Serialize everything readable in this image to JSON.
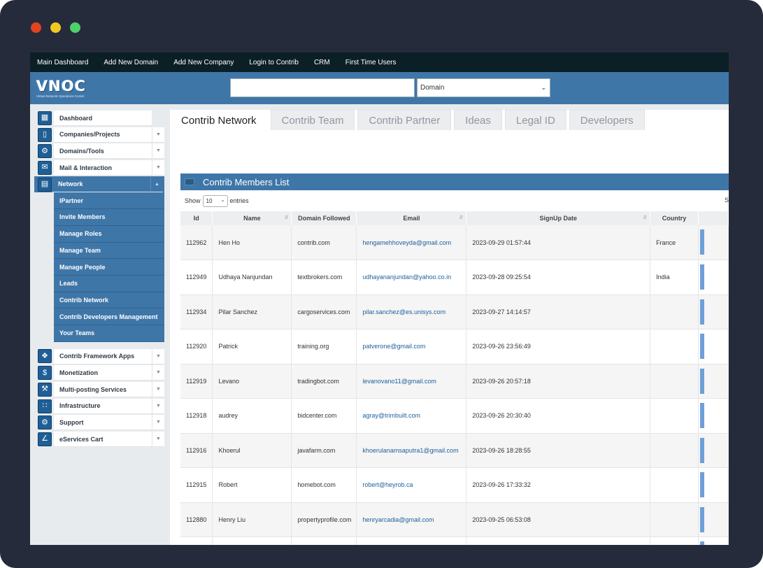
{
  "nav": [
    "Main Dashboard",
    "Add New Domain",
    "Add New Company",
    "Login to Contrib",
    "CRM",
    "First Time Users"
  ],
  "logo": {
    "text": "VNOC",
    "subtitle": "Virtual Network Operations Center"
  },
  "header": {
    "search_value": "",
    "domain_select": "Domain"
  },
  "sidebar": {
    "items_top": [
      {
        "label": "Dashboard",
        "icon": "chart-icon",
        "caret": false
      },
      {
        "label": "Companies/Projects",
        "icon": "phone-icon",
        "caret": true
      },
      {
        "label": "Domains/Tools",
        "icon": "gear-icon",
        "caret": true
      },
      {
        "label": "Mail & Interaction",
        "icon": "mail-icon",
        "caret": true
      },
      {
        "label": "Network",
        "icon": "network-icon",
        "caret": true,
        "active": true
      }
    ],
    "sub_items": [
      "IPartner",
      "Invite Members",
      "Manage Roles",
      "Manage Team",
      "Manage People",
      "Leads",
      "Contrib Network",
      "Contrib Developers Management",
      "Your Teams"
    ],
    "items_bottom": [
      {
        "label": "Contrib Framework Apps",
        "icon": "puzzle-icon",
        "caret": true
      },
      {
        "label": "Monetization",
        "icon": "dollar-icon",
        "caret": true
      },
      {
        "label": "Multi-posting Services",
        "icon": "gavel-icon",
        "caret": true
      },
      {
        "label": "Infrastructure",
        "icon": "grid-icon",
        "caret": true
      },
      {
        "label": "Support",
        "icon": "gear-icon",
        "caret": true
      },
      {
        "label": "eServices Cart",
        "icon": "cart-icon",
        "caret": true
      }
    ]
  },
  "tabs": [
    "Contrib Network",
    "Contrib Team",
    "Contrib Partner",
    "Ideas",
    "Legal ID",
    "Developers"
  ],
  "panel": {
    "title": "Contrib Members List",
    "show_label": "Show",
    "page_length": "10",
    "entries_label": "entries",
    "search_label": "S"
  },
  "table": {
    "columns": [
      "Id",
      "Name",
      "Domain Followed",
      "Email",
      "SignUp Date",
      "Country",
      ""
    ],
    "rows": [
      [
        "112962",
        "Hen Ho",
        "contrib.com",
        "hengamehhoveyda@gmail.com",
        "2023-09-29 01:57:44",
        "France",
        ""
      ],
      [
        "112949",
        "Udhaya Nanjundan",
        "textbrokers.com",
        "udhayananjundan@yahoo.co.in",
        "2023-09-28 09:25:54",
        "India",
        ""
      ],
      [
        "112934",
        "Pilar Sanchez",
        "cargoservices.com",
        "pilar.sanchez@es.unisys.com",
        "2023-09-27 14:14:57",
        "",
        ""
      ],
      [
        "112920",
        "Patrick",
        "training.org",
        "patverone@gmail.com",
        "2023-09-26 23:56:49",
        "",
        ""
      ],
      [
        "112919",
        "Levano",
        "tradingbot.com",
        "levanovano11@gmail.com",
        "2023-09-26 20:57:18",
        "",
        ""
      ],
      [
        "112918",
        "audrey",
        "bidcenter.com",
        "agray@trimbuilt.com",
        "2023-09-26 20:30:40",
        "",
        ""
      ],
      [
        "112916",
        "Khoerul",
        "javafarm.com",
        "khoerulanamsaputra1@gmail.com",
        "2023-09-26 18:28:55",
        "",
        ""
      ],
      [
        "112915",
        "Robert",
        "homebot.com",
        "robert@heyrob.ca",
        "2023-09-26 17:33:32",
        "",
        ""
      ],
      [
        "112880",
        "Henry Liu",
        "propertyprofile.com",
        "henryarcadia@gmail.com",
        "2023-09-25 06:53:08",
        "",
        ""
      ],
      [
        "",
        "",
        "",
        "",
        "",
        "",
        ""
      ]
    ]
  },
  "colors": {
    "brand_blue": "#3f76a8",
    "top_nav": "#0b1f27",
    "frame": "#262b3b"
  }
}
